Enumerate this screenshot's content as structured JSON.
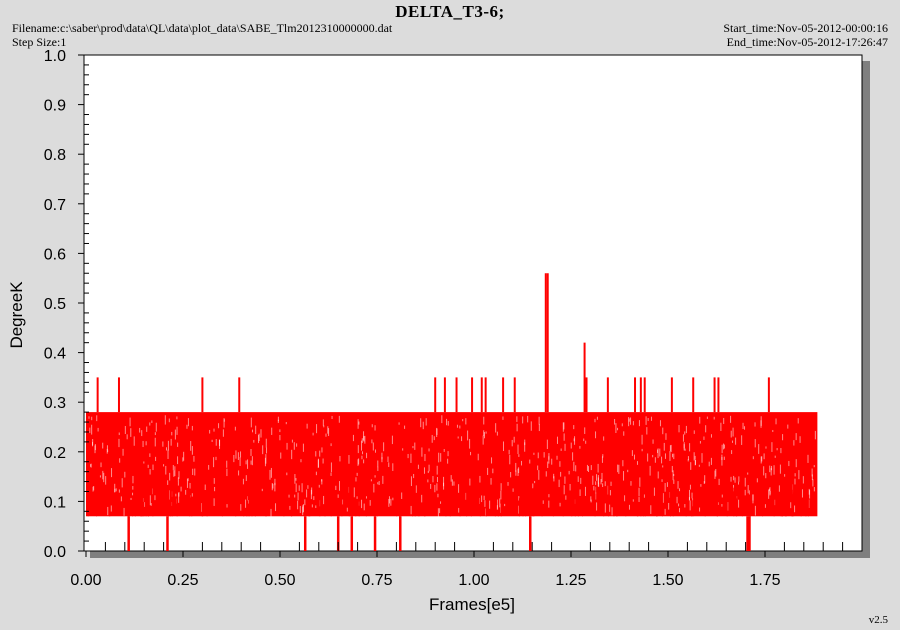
{
  "header": {
    "title": "DELTA_T3-6;",
    "filename": "Filename:c:\\saber\\prod\\data\\QL\\data\\plot_data\\SABE_Tlm2012310000000.dat",
    "step_size": "Step Size:1",
    "start_time": "Start_time:Nov-05-2012-00:00:16",
    "end_time": "End_time:Nov-05-2012-17:26:47",
    "version": "v2.5"
  },
  "colors": {
    "series": "#ff0000",
    "background": "#dcdcdc",
    "plot_area": "#ffffff"
  },
  "chart_data": {
    "type": "line",
    "xlabel": "Frames[e5]",
    "ylabel": "DegreeK",
    "xlim": [
      0,
      1.97
    ],
    "ylim": [
      0,
      1.0
    ],
    "xticks": [
      "0.00",
      "0.25",
      "0.50",
      "0.75",
      "1.00",
      "1.25",
      "1.50",
      "1.75"
    ],
    "yticks": [
      "0.0",
      "0.1",
      "0.2",
      "0.3",
      "0.4",
      "0.5",
      "0.6",
      "0.7",
      "0.8",
      "0.9",
      "1.0"
    ],
    "grid": false,
    "series": [
      {
        "band": {
          "x": [
            0.0,
            1.885
          ],
          "low": 0.07,
          "high": 0.28
        },
        "spikes_up": [
          {
            "x": 0.03,
            "y": 0.35
          },
          {
            "x": 0.085,
            "y": 0.35
          },
          {
            "x": 0.3,
            "y": 0.35
          },
          {
            "x": 0.395,
            "y": 0.35
          },
          {
            "x": 0.9,
            "y": 0.35
          },
          {
            "x": 0.925,
            "y": 0.35
          },
          {
            "x": 0.955,
            "y": 0.35
          },
          {
            "x": 0.995,
            "y": 0.35
          },
          {
            "x": 1.02,
            "y": 0.35
          },
          {
            "x": 1.03,
            "y": 0.35
          },
          {
            "x": 1.075,
            "y": 0.35
          },
          {
            "x": 1.105,
            "y": 0.35
          },
          {
            "x": 1.185,
            "y": 0.56
          },
          {
            "x": 1.19,
            "y": 0.56
          },
          {
            "x": 1.285,
            "y": 0.42
          },
          {
            "x": 1.29,
            "y": 0.35
          },
          {
            "x": 1.345,
            "y": 0.35
          },
          {
            "x": 1.415,
            "y": 0.35
          },
          {
            "x": 1.43,
            "y": 0.35
          },
          {
            "x": 1.44,
            "y": 0.35
          },
          {
            "x": 1.51,
            "y": 0.35
          },
          {
            "x": 1.565,
            "y": 0.35
          },
          {
            "x": 1.62,
            "y": 0.35
          },
          {
            "x": 1.63,
            "y": 0.35
          },
          {
            "x": 1.76,
            "y": 0.35
          }
        ],
        "spikes_down": [
          {
            "x": 0.11,
            "y": 0.0
          },
          {
            "x": 0.21,
            "y": 0.0
          },
          {
            "x": 0.565,
            "y": 0.0
          },
          {
            "x": 0.65,
            "y": 0.0
          },
          {
            "x": 0.685,
            "y": 0.0
          },
          {
            "x": 0.745,
            "y": 0.0
          },
          {
            "x": 0.81,
            "y": 0.0
          },
          {
            "x": 1.145,
            "y": 0.0
          },
          {
            "x": 1.705,
            "y": 0.0
          },
          {
            "x": 1.71,
            "y": 0.0
          }
        ]
      }
    ]
  }
}
